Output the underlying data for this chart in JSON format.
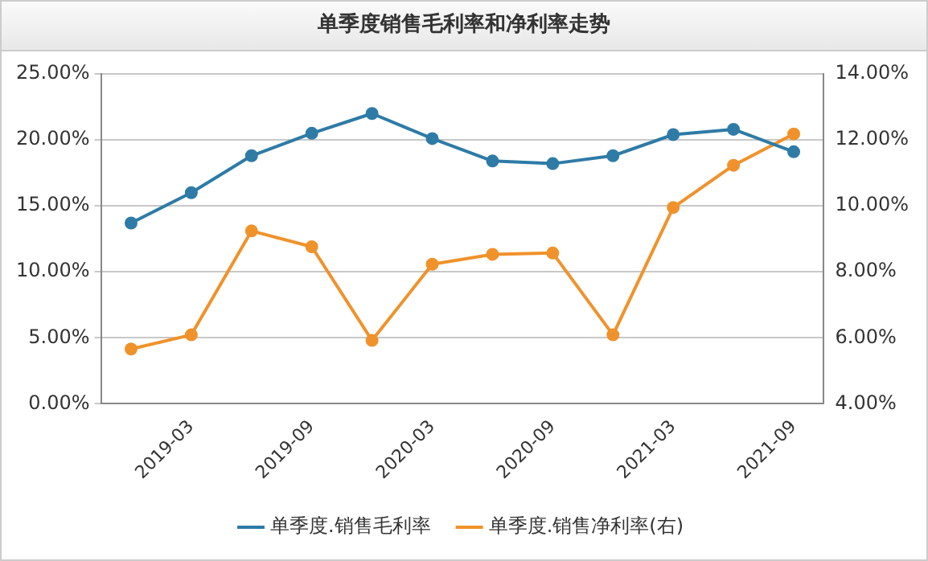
{
  "chart_data": {
    "type": "line",
    "title": "单季度销售毛利率和净利率走势",
    "categories": [
      null,
      "2019-03",
      null,
      "2019-09",
      null,
      "2020-03",
      null,
      "2020-09",
      null,
      "2021-03",
      null,
      "2021-09"
    ],
    "series": [
      {
        "name": "单季度.销售毛利率",
        "color": "#2e7ba6",
        "values": [
          13.7,
          16.0,
          18.8,
          20.5,
          22.0,
          20.1,
          18.4,
          18.2,
          18.8,
          20.4,
          20.8,
          19.1
        ]
      },
      {
        "name": "单季度.销售净利率(右)",
        "color": "#f0922b",
        "axis": "y2",
        "values": [
          5.66,
          6.09,
          9.24,
          8.76,
          5.92,
          8.23,
          8.53,
          8.57,
          6.09,
          9.95,
          11.23,
          12.18
        ]
      }
    ],
    "ylim": [
      0,
      25
    ],
    "yticks": [
      {
        "value": 0,
        "label": "0.00%"
      },
      {
        "value": 5,
        "label": "5.00%"
      },
      {
        "value": 10,
        "label": "10.00%"
      },
      {
        "value": 15,
        "label": "15.00%"
      },
      {
        "value": 20,
        "label": "20.00%"
      },
      {
        "value": 25,
        "label": "25.00%"
      }
    ],
    "y2lim": [
      4,
      14
    ],
    "y2ticks": [
      {
        "value": 4,
        "label": "4.00%"
      },
      {
        "value": 6,
        "label": "6.00%"
      },
      {
        "value": 8,
        "label": "8.00%"
      },
      {
        "value": 10,
        "label": "10.00%"
      },
      {
        "value": 12,
        "label": "12.00%"
      },
      {
        "value": 14,
        "label": "14.00%"
      }
    ],
    "grid": "y",
    "legend": "bottom",
    "marker": "circle",
    "line_style": "solid"
  }
}
